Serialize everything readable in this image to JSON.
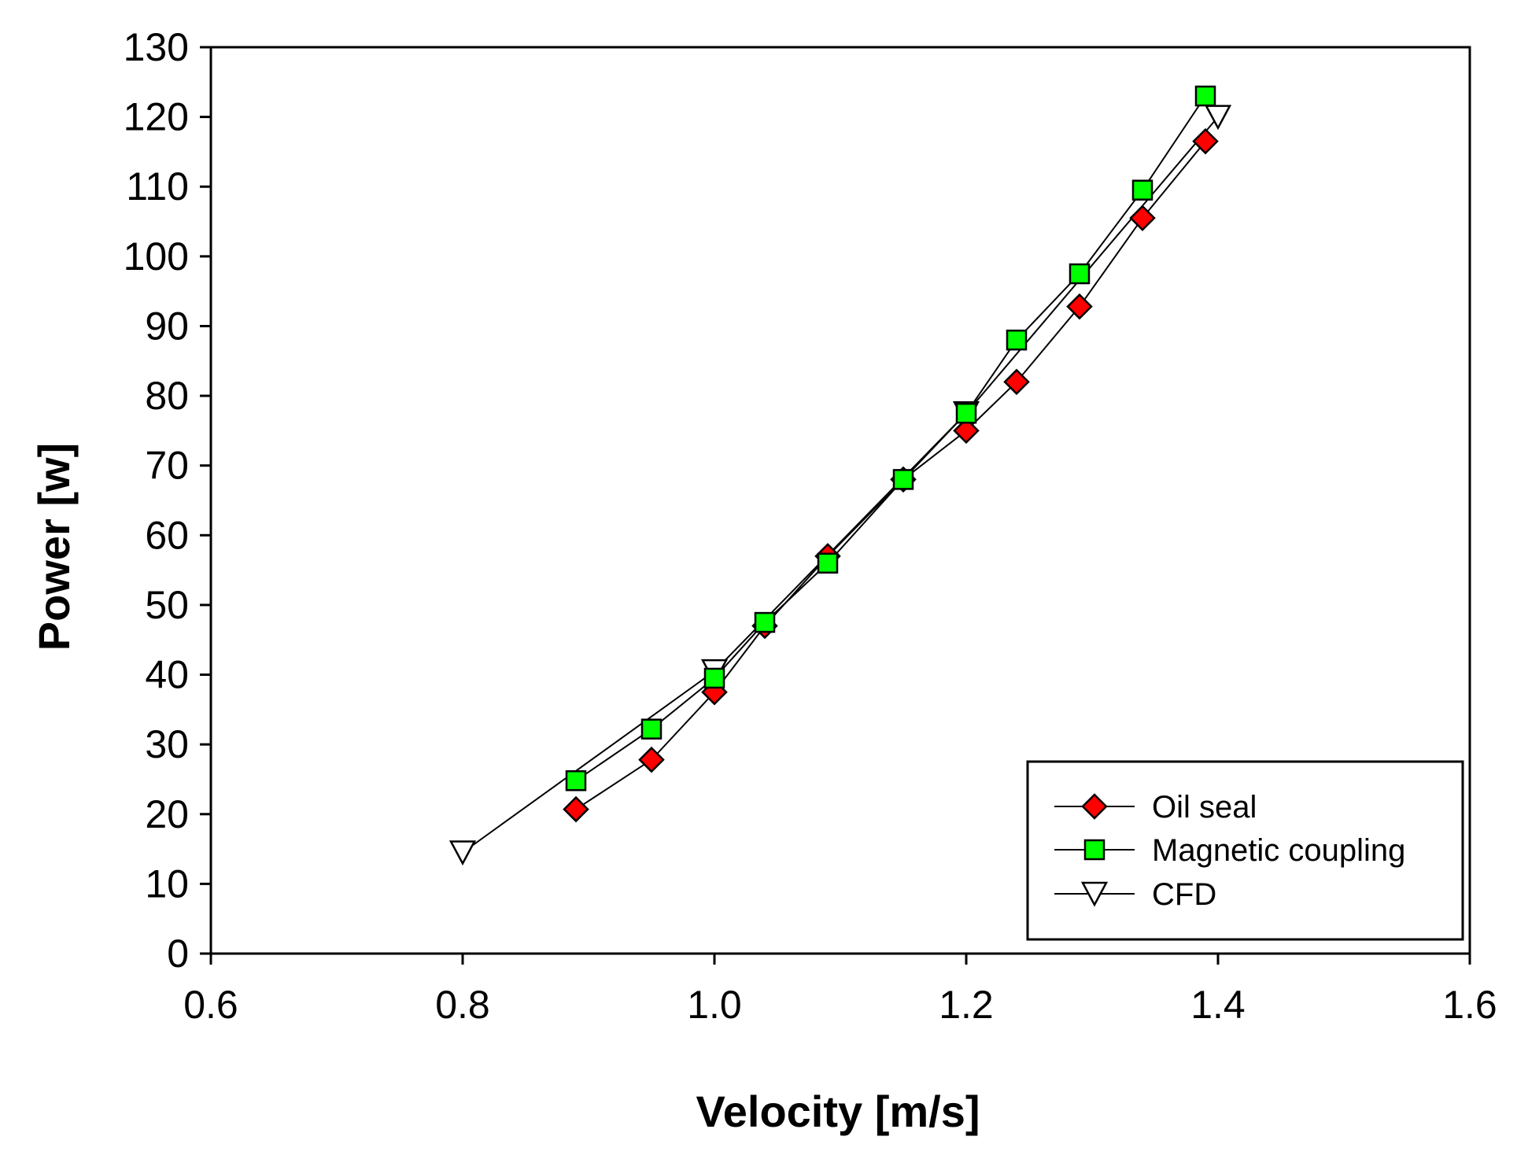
{
  "chart_data": {
    "type": "line",
    "xlabel": "Velocity [m/s]",
    "ylabel": "Power [w]",
    "xlim": [
      0.6,
      1.6
    ],
    "ylim": [
      0,
      130
    ],
    "xticks": [
      0.6,
      0.8,
      1.0,
      1.2,
      1.4,
      1.6
    ],
    "xtick_labels": [
      "0.6",
      "0.8",
      "1.0",
      "1.2",
      "1.4",
      "1.6"
    ],
    "yticks": [
      0,
      10,
      20,
      30,
      40,
      50,
      60,
      70,
      80,
      90,
      100,
      110,
      120,
      130
    ],
    "ytick_labels": [
      "0",
      "10",
      "20",
      "30",
      "40",
      "50",
      "60",
      "70",
      "80",
      "90",
      "100",
      "110",
      "120",
      "130"
    ],
    "grid": false,
    "legend_position": "bottom-right",
    "series": [
      {
        "name": "Oil seal",
        "marker": "diamond",
        "color": "#ff0000",
        "x": [
          0.89,
          0.95,
          1.0,
          1.04,
          1.09,
          1.15,
          1.2,
          1.24,
          1.29,
          1.34,
          1.39
        ],
        "y": [
          20.7,
          27.8,
          37.5,
          47.0,
          57.0,
          68.0,
          75.0,
          82.0,
          92.8,
          105.5,
          116.5
        ]
      },
      {
        "name": "Magnetic coupling",
        "marker": "square",
        "color": "#00ff00",
        "x": [
          0.89,
          0.95,
          1.0,
          1.04,
          1.09,
          1.15,
          1.2,
          1.24,
          1.29,
          1.34,
          1.39
        ],
        "y": [
          24.8,
          32.2,
          39.5,
          47.5,
          56.0,
          68.0,
          77.5,
          88.0,
          97.5,
          109.5,
          123.0
        ]
      },
      {
        "name": "CFD",
        "marker": "triangle-down",
        "color": "#ffffff",
        "x": [
          0.8,
          1.0,
          1.2,
          1.4
        ],
        "y": [
          14.5,
          40.5,
          77.5,
          120.0
        ]
      }
    ]
  }
}
